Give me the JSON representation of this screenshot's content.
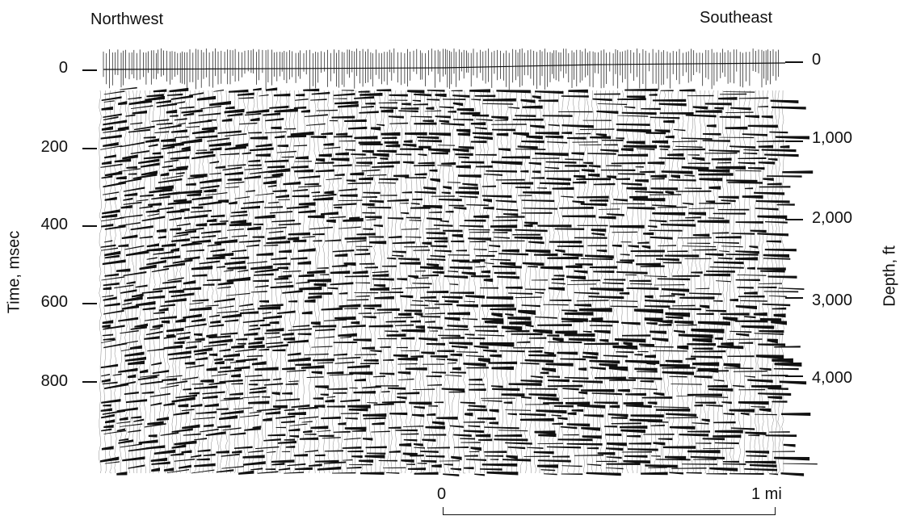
{
  "header": {
    "left_label": "Northwest",
    "right_label": "Southeast"
  },
  "left_axis": {
    "label": "Time, msec",
    "ticks": [
      "0",
      "200",
      "400",
      "600",
      "800"
    ]
  },
  "right_axis": {
    "label": "Depth, ft",
    "ticks": [
      "0",
      "1,000",
      "2,000",
      "3,000",
      "4,000"
    ]
  },
  "scale": {
    "start_label": "0",
    "end_label": "1 mi"
  },
  "colors": {
    "ink": "#111111",
    "paper": "#ffffff"
  }
}
